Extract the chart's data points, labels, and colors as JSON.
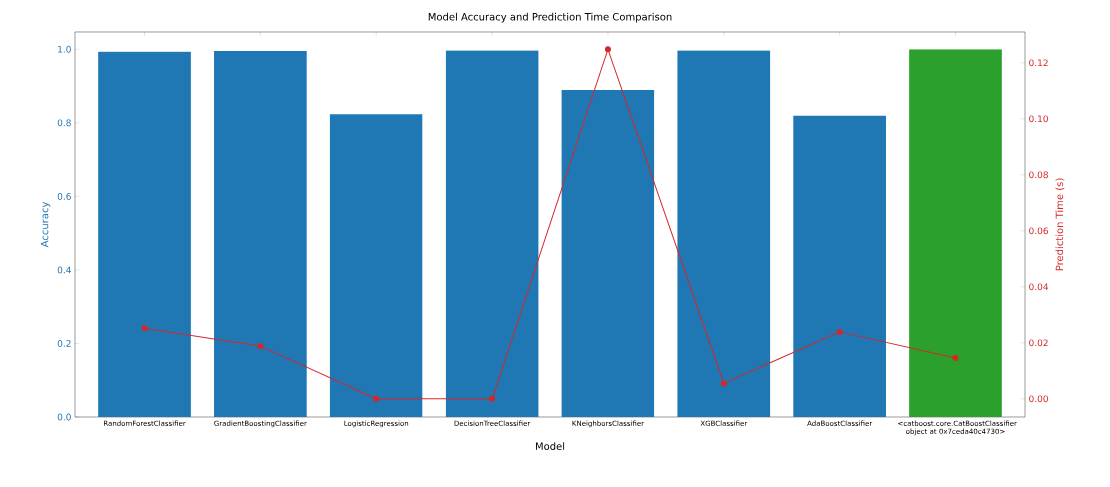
{
  "chart_data": {
    "type": "bar",
    "title": "Model Accuracy and Prediction Time Comparison",
    "xlabel": "Model",
    "ylabel": "Accuracy",
    "y2label": "Prediction Time (s)",
    "categories": [
      "RandomForestClassifier",
      "GradientBoostingClassifier",
      "LogisticRegression",
      "DecisionTreeClassifier",
      "KNeighborsClassifier",
      "XGBClassifier",
      "AdaBoostClassifier",
      "<catboost.core.CatBoostClassifier object at 0x7ceda40c4730>"
    ],
    "series": [
      {
        "values": [
          0.993,
          0.995,
          0.823,
          0.997,
          0.889,
          0.997,
          0.82,
          1.0
        ],
        "colors": [
          "#1f77b4",
          "#1f77b4",
          "#1f77b4",
          "#1f77b4",
          "#1f77b4",
          "#1f77b4",
          "#1f77b4",
          "#2ca02c"
        ]
      },
      {
        "type": "line",
        "axis": "y2",
        "color": "#d62728",
        "marker": "circle",
        "values": [
          0.0252,
          0.0188,
          0.0,
          0.0,
          0.1248,
          0.0055,
          0.0239,
          0.0146
        ]
      }
    ],
    "ylim": [
      0,
      1.047
    ],
    "yticks": [
      {
        "value": 0,
        "label": "0.0"
      },
      0.2,
      0.4,
      0.6,
      0.8,
      {
        "value": 1,
        "label": "1.0"
      }
    ],
    "y2lim": [
      -0.0065,
      0.131
    ],
    "y2ticks": [
      {
        "value": 0,
        "label": "0.00"
      },
      0.02,
      0.04,
      0.06,
      0.08,
      {
        "value": 0.1,
        "label": "0.10"
      },
      0.12
    ],
    "grid": false
  }
}
